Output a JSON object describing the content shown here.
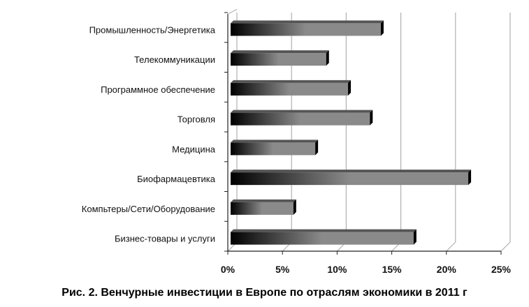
{
  "chart_data": {
    "type": "bar",
    "orientation": "horizontal",
    "style": "3d-gradient",
    "categories": [
      "Промышленность/Энергетика",
      "Телекоммуникации",
      "Программное обеспечение",
      "Торговля",
      "Медицина",
      "Биофармацевтика",
      "Компьтеры/Сети/Оборудование",
      "Бизнес-товары и услуги"
    ],
    "values": [
      14,
      9,
      11,
      13,
      8,
      22,
      6,
      17
    ],
    "xlim": [
      0,
      25
    ],
    "xticks": [
      "0%",
      "5%",
      "10%",
      "15%",
      "20%",
      "25%"
    ],
    "grid": true,
    "colors": {
      "bar_dark": "#000000",
      "bar_light": "#8a8a8a",
      "grid": "#b0b0b0"
    }
  },
  "caption": "Рис. 2. Венчурные инвестиции в Европе по отраслям экономики в 2011 г"
}
